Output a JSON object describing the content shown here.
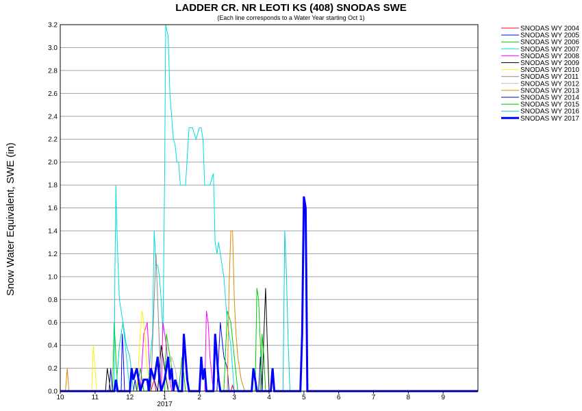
{
  "chart_data": {
    "type": "line",
    "title": "LADDER CR. NR LEOTI KS (408) SNODAS SWE",
    "subtitle": "(Each line corresponds to a Water Year starting Oct 1)",
    "xlabel": "",
    "ylabel": "Snow Water Equivalent, SWE (in)",
    "ylim": [
      0,
      3.2
    ],
    "yticks": [
      "0.0",
      "0.2",
      "0.4",
      "0.6",
      "0.8",
      "1.0",
      "1.2",
      "1.4",
      "1.6",
      "1.8",
      "2.0",
      "2.2",
      "2.4",
      "2.6",
      "2.8",
      "3.0",
      "3.2"
    ],
    "x_unit": "month",
    "xlim": [
      10,
      22
    ],
    "xticks": [
      {
        "x": 10,
        "label": "10"
      },
      {
        "x": 11,
        "label": "11"
      },
      {
        "x": 12,
        "label": "12"
      },
      {
        "x": 13,
        "label": "1"
      },
      {
        "x": 14,
        "label": "2"
      },
      {
        "x": 15,
        "label": "3"
      },
      {
        "x": 16,
        "label": "4"
      },
      {
        "x": 17,
        "label": "5"
      },
      {
        "x": 18,
        "label": "6"
      },
      {
        "x": 19,
        "label": "7"
      },
      {
        "x": 20,
        "label": "8"
      },
      {
        "x": 21,
        "label": "9"
      }
    ],
    "x_sublabel": {
      "x": 13,
      "label": "2017"
    },
    "grid": true,
    "legend_position": "top-right-outside",
    "series": [
      {
        "name": "SNODAS WY 2004",
        "color": "#ff0000",
        "bold": false,
        "x": [
          10,
          12.6,
          12.65,
          12.7,
          12.75,
          14.9,
          14.95,
          15.0,
          22
        ],
        "y": [
          0,
          0,
          0.05,
          0.1,
          0,
          0,
          0.05,
          0,
          0
        ]
      },
      {
        "name": "SNODAS WY 2005",
        "color": "#0000ff",
        "bold": false,
        "x": [
          10,
          11.75,
          11.78,
          11.8,
          11.85,
          12.5,
          12.6,
          12.7,
          12.8,
          14.5,
          14.6,
          14.7,
          14.8,
          14.85,
          15.0,
          22
        ],
        "y": [
          0,
          0,
          0.5,
          0.4,
          0,
          0,
          0.2,
          0.1,
          0,
          0,
          0.6,
          0.3,
          0.2,
          0,
          0,
          0
        ]
      },
      {
        "name": "SNODAS WY 2006",
        "color": "#00cc00",
        "bold": false,
        "x": [
          10,
          11.5,
          11.55,
          11.6,
          11.65,
          13.0,
          13.05,
          13.1,
          13.2,
          13.25,
          14.7,
          14.8,
          14.9,
          15.0,
          15.1,
          15.6,
          15.65,
          15.7,
          15.75,
          15.8,
          22
        ],
        "y": [
          0,
          0,
          0.6,
          0.3,
          0,
          0,
          0.5,
          0.4,
          0.2,
          0,
          0,
          0.7,
          0.6,
          0.3,
          0,
          0,
          0.9,
          0.8,
          0.4,
          0,
          0
        ]
      },
      {
        "name": "SNODAS WY 2007",
        "color": "#00dddd",
        "bold": false,
        "x": [
          10,
          11.55,
          11.57,
          11.6,
          11.62,
          11.65,
          11.7,
          11.8,
          11.9,
          12.0,
          12.5,
          12.65,
          12.7,
          12.75,
          12.8,
          12.85,
          12.9,
          12.95,
          13.0,
          13.03,
          13.06,
          13.1,
          13.15,
          13.2,
          13.25,
          13.3,
          13.35,
          13.4,
          13.45,
          13.5,
          13.6,
          13.7,
          13.75,
          13.8,
          13.9,
          14.0,
          14.05,
          14.1,
          14.15,
          14.2,
          14.3,
          14.4,
          14.45,
          14.5,
          14.55,
          14.6,
          14.7,
          14.8,
          14.9,
          15.0,
          22
        ],
        "y": [
          0,
          0,
          1.0,
          1.8,
          1.5,
          1.2,
          0.8,
          0.6,
          0.3,
          0,
          0,
          0.5,
          1.4,
          1.1,
          1.1,
          1.0,
          0.8,
          0.5,
          1.9,
          3.2,
          3.15,
          3.1,
          2.6,
          2.4,
          2.2,
          2.15,
          2.0,
          2.0,
          1.8,
          1.8,
          1.8,
          2.3,
          2.3,
          2.3,
          2.2,
          2.3,
          2.3,
          2.2,
          1.8,
          1.8,
          1.8,
          1.9,
          1.3,
          1.2,
          1.3,
          1.2,
          1.0,
          0.6,
          0.4,
          0,
          0
        ]
      },
      {
        "name": "SNODAS WY 2008",
        "color": "#ff00ff",
        "bold": false,
        "x": [
          10,
          12.3,
          12.4,
          12.5,
          12.55,
          12.6,
          12.9,
          12.95,
          13.0,
          13.05,
          13.1,
          13.2,
          14.15,
          14.2,
          14.25,
          14.3,
          14.4,
          22
        ],
        "y": [
          0,
          0,
          0.5,
          0.6,
          0.3,
          0,
          0,
          0.6,
          0.5,
          0.4,
          0.2,
          0,
          0,
          0.7,
          0.6,
          0.3,
          0,
          0
        ]
      },
      {
        "name": "SNODAS WY 2009",
        "color": "#000000",
        "bold": false,
        "x": [
          10,
          11.3,
          11.35,
          11.4,
          11.45,
          12.8,
          12.9,
          13.0,
          13.1,
          15.8,
          15.85,
          15.9,
          15.95,
          16.0,
          22
        ],
        "y": [
          0,
          0,
          0.2,
          0.1,
          0,
          0,
          0.4,
          0.2,
          0,
          0,
          0.5,
          0.9,
          0.4,
          0,
          0
        ]
      },
      {
        "name": "SNODAS WY 2010",
        "color": "#ffee00",
        "bold": false,
        "x": [
          10,
          10.9,
          10.95,
          11.0,
          11.05,
          12.2,
          12.3,
          12.35,
          12.4,
          12.5,
          12.6,
          22
        ],
        "y": [
          0,
          0,
          0.4,
          0.2,
          0,
          0,
          0.5,
          0.7,
          0.6,
          0.2,
          0,
          0
        ]
      },
      {
        "name": "SNODAS WY 2011",
        "color": "#888888",
        "bold": false,
        "x": [
          10,
          12.6,
          12.7,
          12.75,
          12.8,
          12.9,
          22
        ],
        "y": [
          0,
          0,
          0.8,
          1.2,
          0.8,
          0,
          0
        ]
      },
      {
        "name": "SNODAS WY 2012",
        "color": "#bbbbbb",
        "bold": false,
        "x": [
          10,
          13.1,
          13.2,
          13.3,
          13.4,
          22
        ],
        "y": [
          0,
          0,
          0.3,
          0.2,
          0,
          0
        ]
      },
      {
        "name": "SNODAS WY 2013",
        "color": "#dd8800",
        "bold": false,
        "x": [
          10,
          10.15,
          10.2,
          10.25,
          14.8,
          14.85,
          14.9,
          14.95,
          15.0,
          15.05,
          15.1,
          15.2,
          15.3,
          22
        ],
        "y": [
          0,
          0,
          0.2,
          0,
          0,
          0.9,
          1.4,
          1.4,
          0.8,
          0.5,
          0.3,
          0.1,
          0,
          0
        ]
      },
      {
        "name": "SNODAS WY 2014",
        "color": "#0000aa",
        "bold": false,
        "x": [
          10,
          11.4,
          11.45,
          11.5,
          12.1,
          12.15,
          12.2,
          15.7,
          15.75,
          15.8,
          22
        ],
        "y": [
          0,
          0,
          0.2,
          0,
          0,
          0.1,
          0,
          0,
          0.3,
          0,
          0
        ]
      },
      {
        "name": "SNODAS WY 2015",
        "color": "#00bb00",
        "bold": false,
        "x": [
          10,
          12.2,
          12.3,
          12.4,
          13.4,
          13.5,
          13.6,
          15.75,
          15.8,
          15.85,
          15.9,
          22
        ],
        "y": [
          0,
          0,
          0.2,
          0,
          0,
          0.3,
          0,
          0,
          0.5,
          0.3,
          0,
          0
        ]
      },
      {
        "name": "SNODAS WY 2016",
        "color": "#00cccc",
        "bold": false,
        "x": [
          10,
          11.6,
          11.7,
          11.75,
          11.8,
          11.9,
          12.0,
          12.1,
          16.4,
          16.45,
          16.5,
          16.55,
          16.6,
          22
        ],
        "y": [
          0,
          0,
          0.4,
          0.5,
          0.6,
          0.4,
          0.3,
          0,
          0,
          1.4,
          1.0,
          0.4,
          0,
          0
        ]
      },
      {
        "name": "SNODAS WY 2017",
        "color": "#0000ff",
        "bold": true,
        "x": [
          10,
          11.55,
          11.6,
          11.65,
          12.0,
          12.05,
          12.1,
          12.2,
          12.25,
          12.3,
          12.4,
          12.5,
          12.55,
          12.6,
          12.7,
          12.8,
          12.85,
          12.9,
          13.0,
          13.1,
          13.15,
          13.2,
          13.25,
          13.3,
          13.4,
          13.5,
          13.55,
          13.6,
          13.65,
          13.7,
          14.0,
          14.05,
          14.1,
          14.15,
          14.2,
          14.4,
          14.45,
          14.5,
          14.55,
          14.6,
          15.5,
          15.55,
          15.6,
          15.65,
          16.05,
          16.1,
          16.15,
          16.9,
          16.95,
          17.0,
          17.05,
          17.1,
          22
        ],
        "y": [
          0,
          0,
          0.1,
          0,
          0,
          0.2,
          0.1,
          0.2,
          0.1,
          0,
          0.1,
          0.1,
          0,
          0.2,
          0.1,
          0.3,
          0.1,
          0,
          0.1,
          0.3,
          0.1,
          0.2,
          0,
          0.1,
          0,
          0,
          0.5,
          0.3,
          0.1,
          0,
          0,
          0.3,
          0.1,
          0.2,
          0,
          0,
          0.5,
          0.3,
          0.1,
          0,
          0,
          0.2,
          0.1,
          0,
          0,
          0.2,
          0,
          0,
          0.5,
          1.7,
          1.6,
          0,
          0
        ]
      }
    ]
  }
}
